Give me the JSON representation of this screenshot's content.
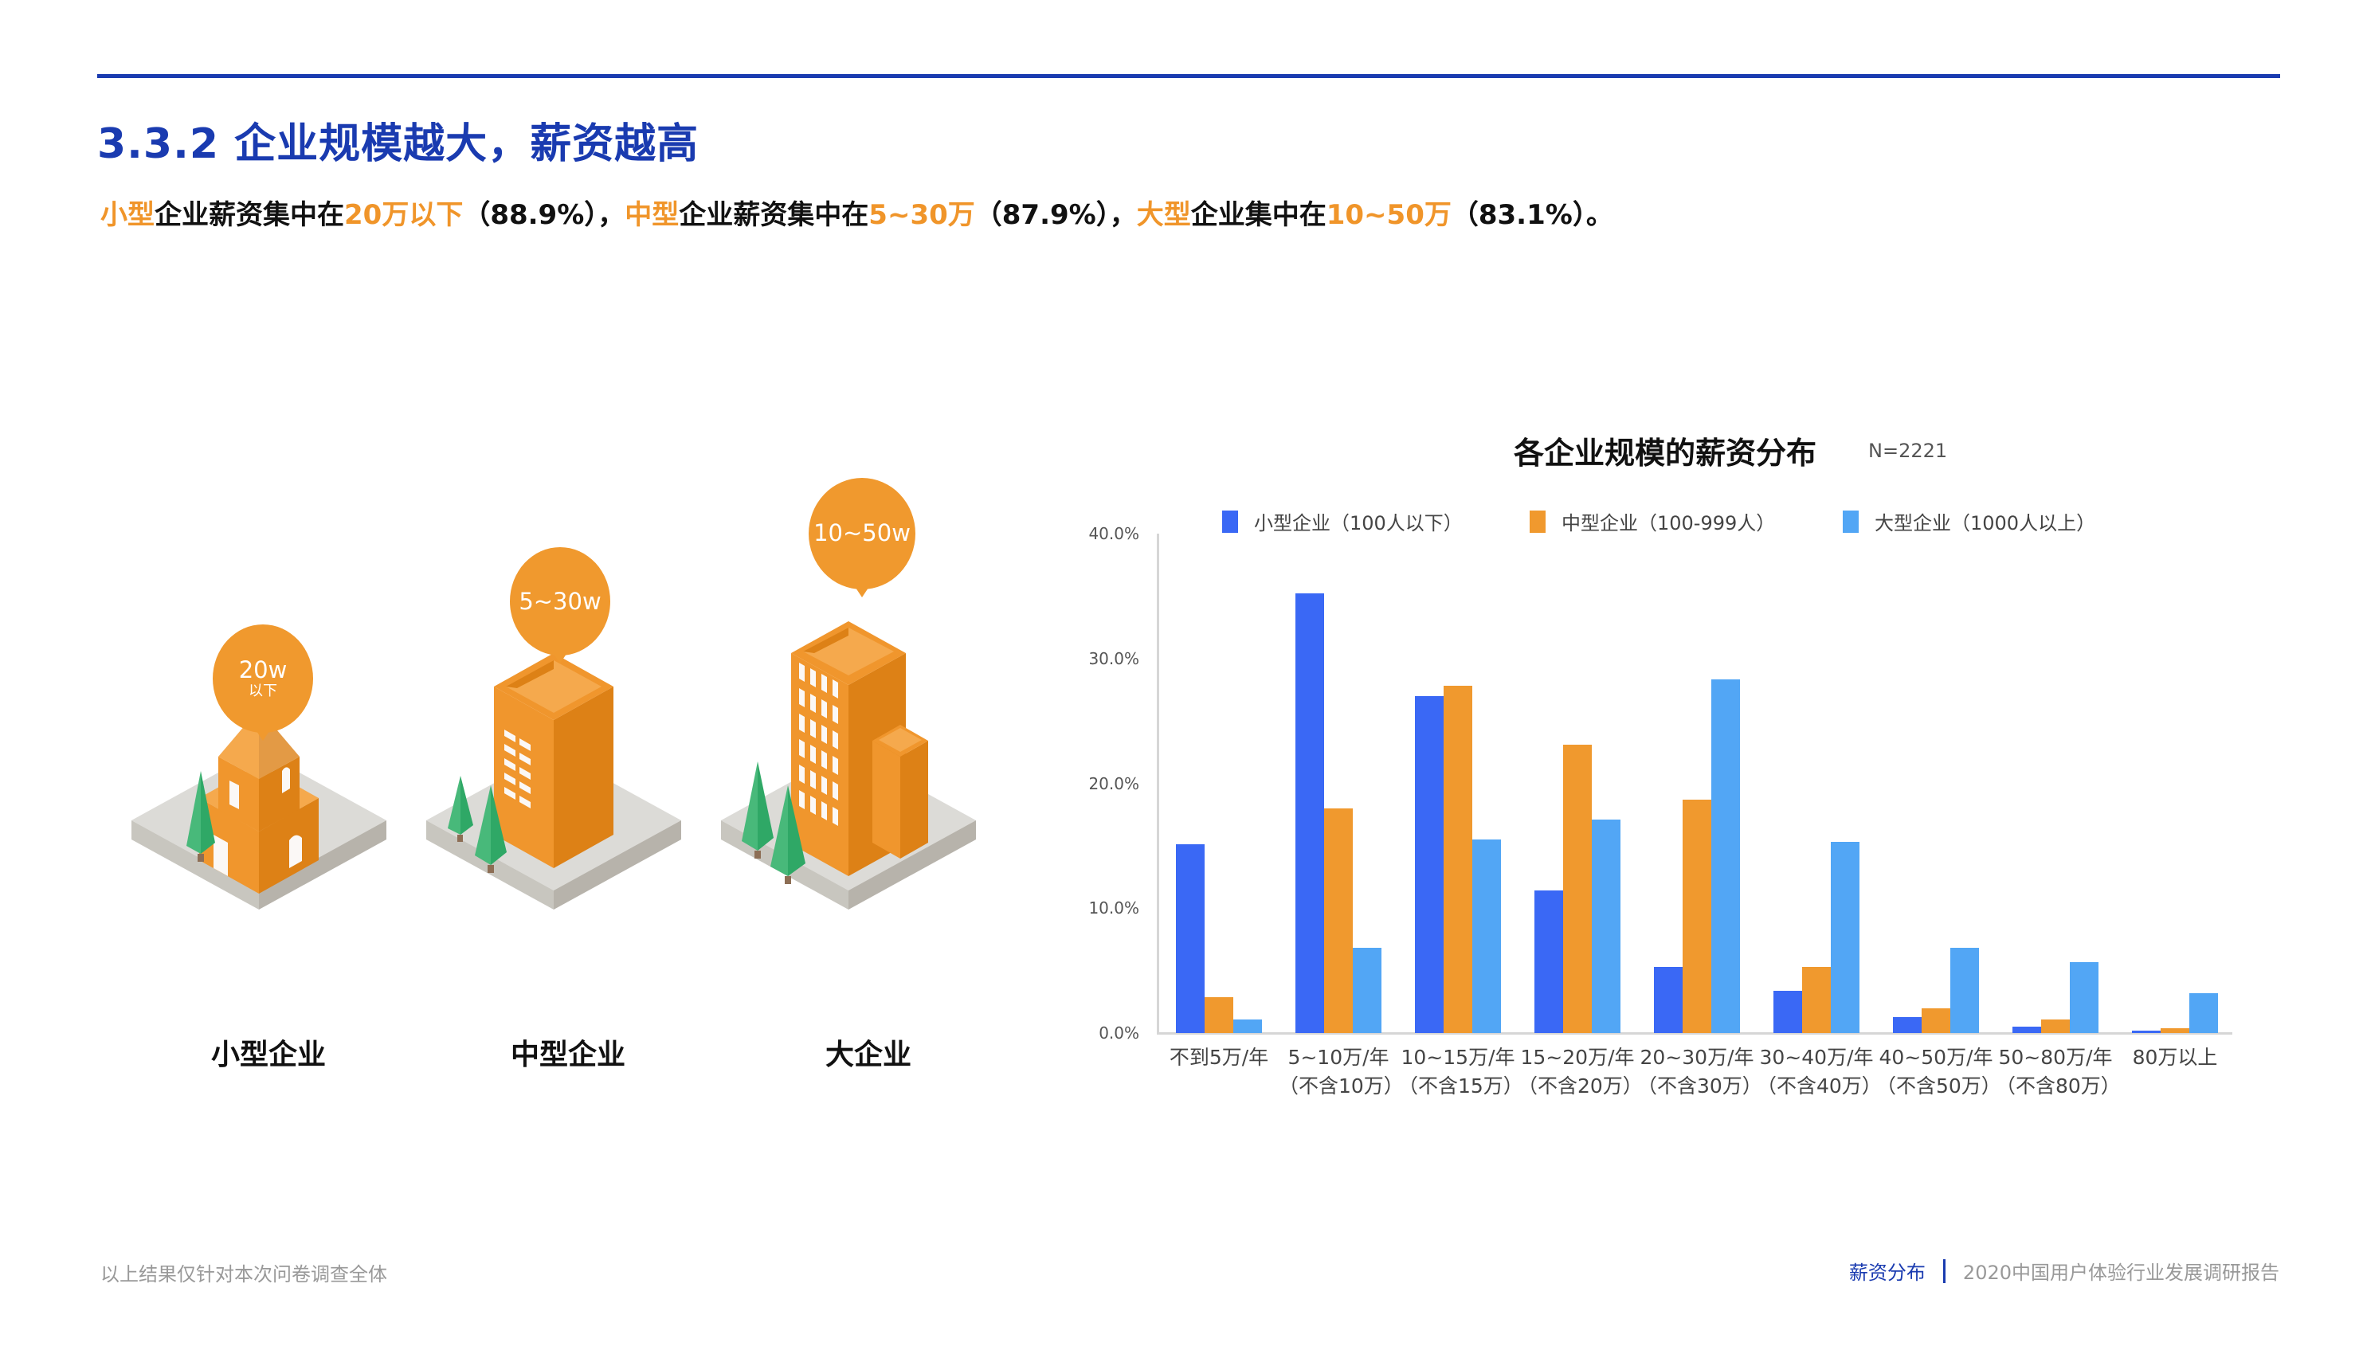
{
  "header": {
    "title": "3.3.2 企业规模越大，薪资越高",
    "subtitle": [
      {
        "text": "小型",
        "hl": true
      },
      {
        "text": "企业薪资集中在",
        "hl": false
      },
      {
        "text": "20万以下",
        "hl": true
      },
      {
        "text": "（88.9%），",
        "hl": false
      },
      {
        "text": "中型",
        "hl": true
      },
      {
        "text": "企业薪资集中在",
        "hl": false
      },
      {
        "text": "5~30万",
        "hl": true
      },
      {
        "text": "（87.9%），",
        "hl": false
      },
      {
        "text": "大型",
        "hl": true
      },
      {
        "text": "企业集中在",
        "hl": false
      },
      {
        "text": "10~50万",
        "hl": true
      },
      {
        "text": "（83.1%）。",
        "hl": false
      }
    ]
  },
  "illustration": {
    "enterprises": [
      {
        "label": "小型企业",
        "bubble_main": "20w",
        "bubble_sub": "以下",
        "icon": "small-building-icon"
      },
      {
        "label": "中型企业",
        "bubble_main": "5~30w",
        "bubble_sub": "",
        "icon": "medium-building-icon"
      },
      {
        "label": "大企业",
        "bubble_main": "10~50w",
        "bubble_sub": "",
        "icon": "large-building-icon"
      }
    ]
  },
  "colors": {
    "title_blue": "#1a3bb0",
    "highlight_orange": "#f0952a",
    "small": "#3a68f5",
    "medium": "#f0992e",
    "large": "#52a6f5",
    "building_light": "#f5a94d",
    "building_mid": "#f0962d",
    "building_dark": "#dd8116",
    "tree_light": "#48b97a",
    "tree_dark": "#2fa866",
    "ground_top": "#dcdbd7",
    "ground_left": "#c8c6bf",
    "ground_right": "#b7b3ab"
  },
  "chart_data": {
    "type": "bar",
    "title": "各企业规模的薪资分布",
    "sample_size": "N=2221",
    "xlabel": "",
    "ylabel": "",
    "ylim": [
      0,
      40
    ],
    "yticks": [
      "0.0%",
      "10.0%",
      "20.0%",
      "30.0%",
      "40.0%"
    ],
    "legend_position": "top",
    "grid": false,
    "categories": [
      {
        "line1": "不到5万/年",
        "line2": ""
      },
      {
        "line1": "5~10万/年",
        "line2": "（不含10万）"
      },
      {
        "line1": "10~15万/年",
        "line2": "（不含15万）"
      },
      {
        "line1": "15~20万/年",
        "line2": "（不含20万）"
      },
      {
        "line1": "20~30万/年",
        "line2": "（不含30万）"
      },
      {
        "line1": "30~40万/年",
        "line2": "（不含40万）"
      },
      {
        "line1": "40~50万/年",
        "line2": "（不含50万）"
      },
      {
        "line1": "50~80万/年",
        "line2": "（不含80万）"
      },
      {
        "line1": "80万以上",
        "line2": ""
      }
    ],
    "series": [
      {
        "name": "小型企业（100人以下）",
        "color": "#3a68f5",
        "values": [
          15.1,
          35.2,
          27.0,
          11.4,
          5.3,
          3.4,
          1.3,
          0.5,
          0.2
        ]
      },
      {
        "name": "中型企业（100-999人）",
        "color": "#f0992e",
        "values": [
          2.9,
          18.0,
          27.8,
          23.1,
          18.7,
          5.3,
          2.0,
          1.1,
          0.4
        ]
      },
      {
        "name": "大型企业（1000人以上）",
        "color": "#52a6f5",
        "values": [
          1.1,
          6.8,
          15.5,
          17.1,
          28.3,
          15.3,
          6.8,
          5.7,
          3.2
        ]
      }
    ]
  },
  "footer": {
    "note": "以上结果仅针对本次问卷调查全体",
    "section": "薪资分布",
    "report": "2020中国用户体验行业发展调研报告"
  }
}
